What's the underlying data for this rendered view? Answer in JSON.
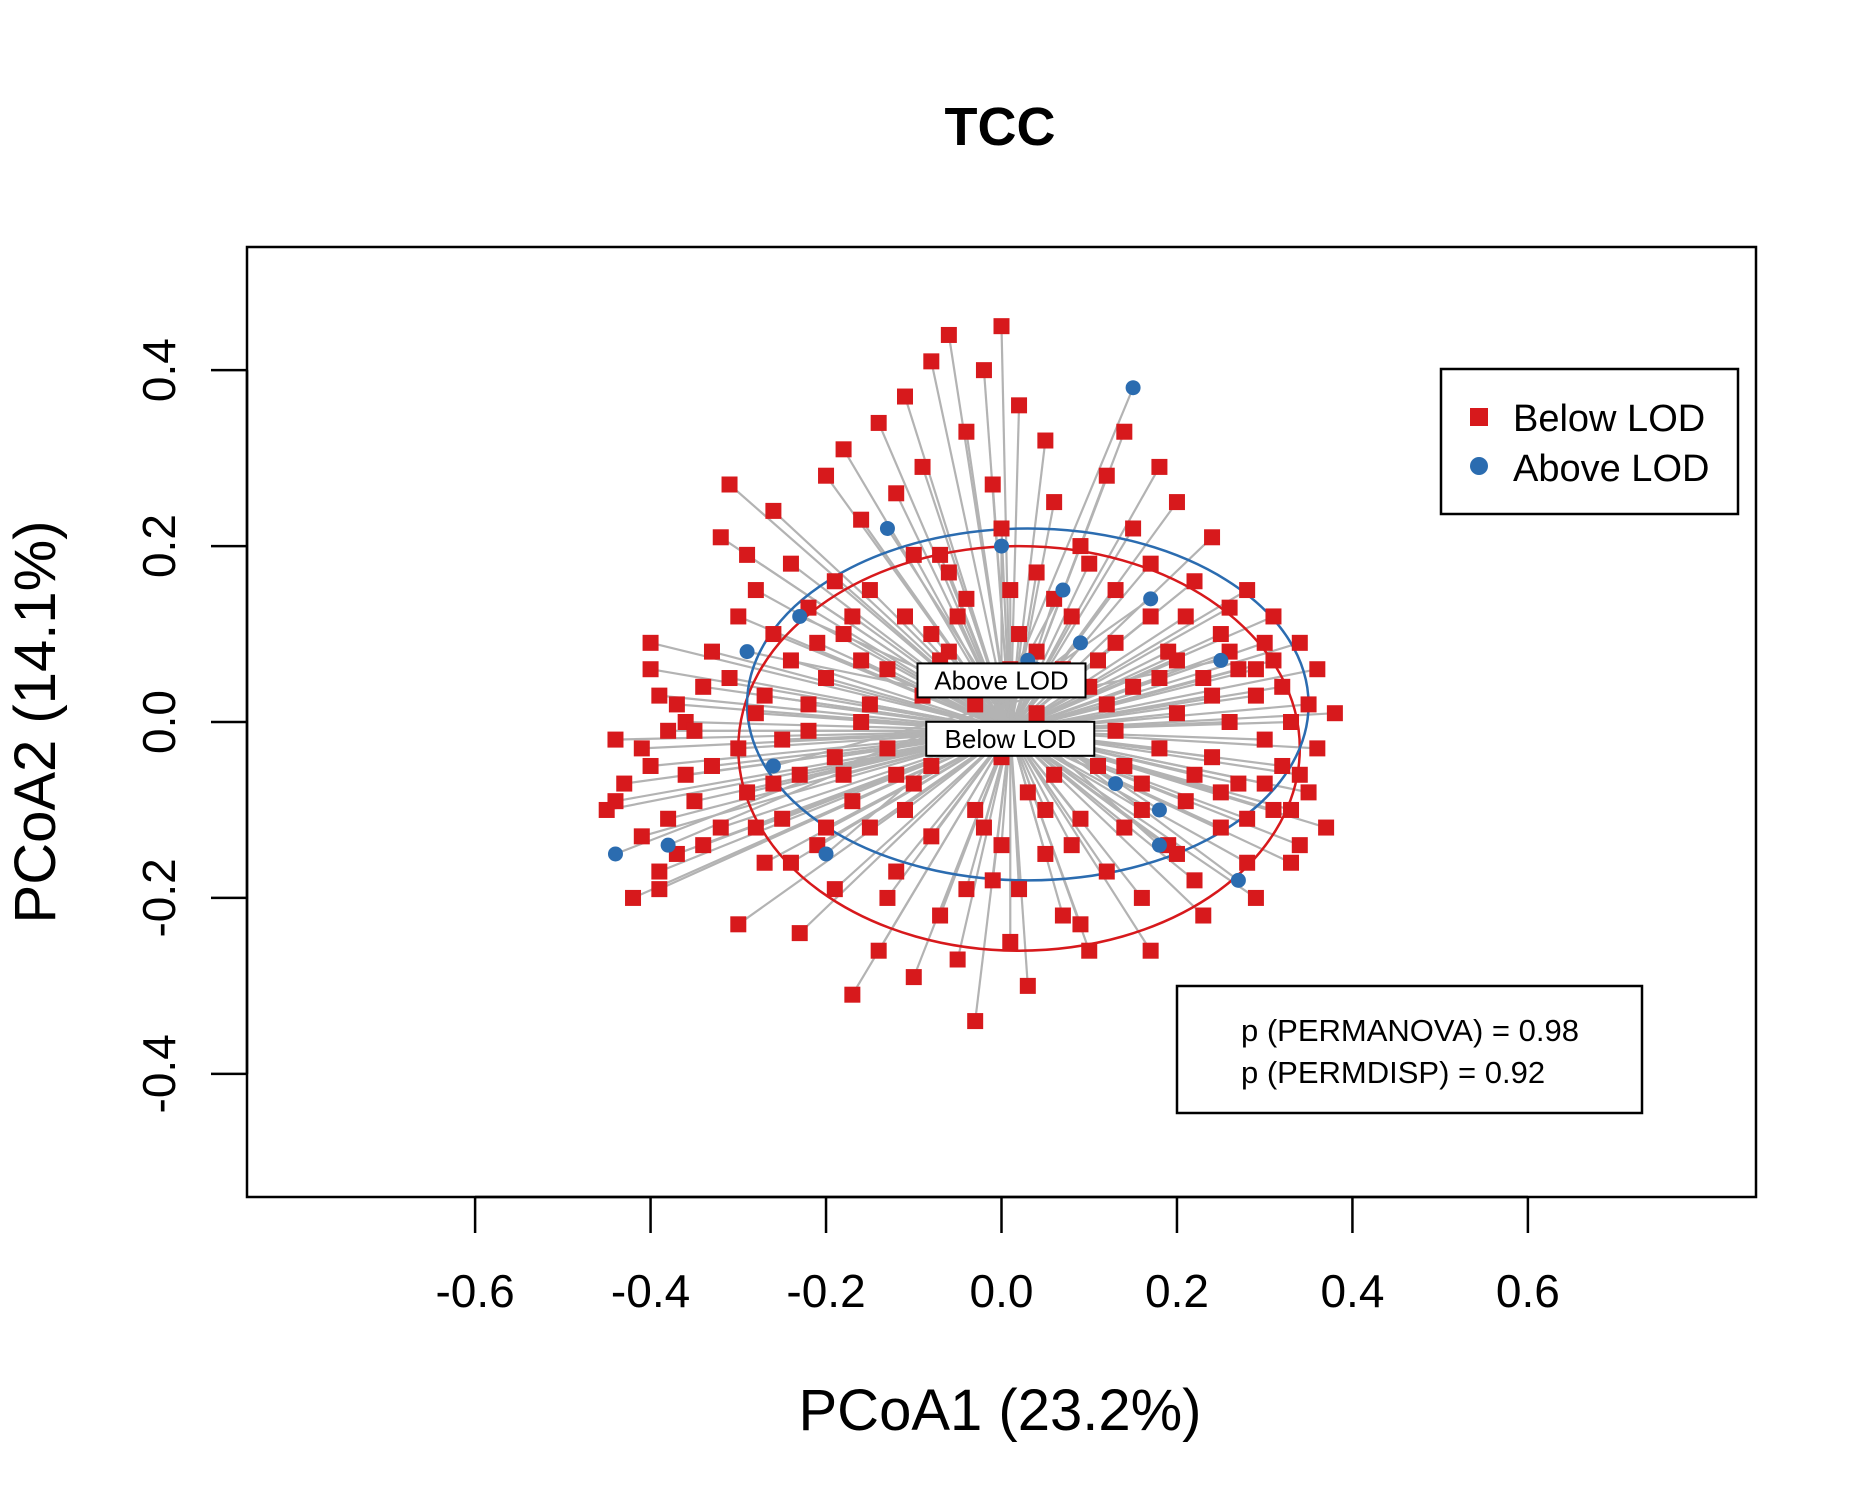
{
  "chart_data": {
    "type": "scatter",
    "title": "TCC",
    "xlabel": "PCoA1 (23.2%)",
    "ylabel": "PCoA2 (14.1%)",
    "xlim": [
      -0.86,
      0.86
    ],
    "ylim": [
      -0.54,
      0.54
    ],
    "x_ticks": [
      "-0.6",
      "-0.4",
      "-0.2",
      "0.0",
      "0.2",
      "0.4",
      "0.6"
    ],
    "y_ticks": [
      "-0.4",
      "-0.2",
      "0.0",
      "0.2",
      "0.4"
    ],
    "grid": false,
    "legend": {
      "position": "top-right",
      "entries": [
        {
          "label": "Below LOD",
          "marker": "square",
          "color": "#d7191c"
        },
        {
          "label": "Above LOD",
          "marker": "circle",
          "color": "#2b6cb0"
        }
      ]
    },
    "annotations": {
      "permanova": "p (PERMANOVA) = 0.98",
      "permdisp": "p (PERMDISP) = 0.92",
      "centroid_above_label": "Above LOD",
      "centroid_below_label": "Below LOD"
    },
    "spider_color": "#b3b3b3",
    "series": [
      {
        "name": "Below LOD",
        "marker": "square",
        "color": "#d7191c",
        "centroid": [
          0.01,
          -0.01
        ],
        "ellipse": {
          "center": [
            0.02,
            -0.03
          ],
          "rx": 0.32,
          "ry": 0.23
        },
        "points": [
          [
            -0.45,
            -0.1
          ],
          [
            -0.44,
            -0.02
          ],
          [
            -0.43,
            -0.07
          ],
          [
            -0.42,
            -0.2
          ],
          [
            -0.41,
            -0.03
          ],
          [
            -0.41,
            -0.13
          ],
          [
            -0.4,
            0.09
          ],
          [
            -0.4,
            0.06
          ],
          [
            -0.4,
            -0.05
          ],
          [
            -0.39,
            -0.19
          ],
          [
            -0.39,
            -0.17
          ],
          [
            -0.38,
            -0.01
          ],
          [
            -0.38,
            -0.11
          ],
          [
            -0.37,
            0.02
          ],
          [
            -0.37,
            -0.15
          ],
          [
            -0.36,
            0.0
          ],
          [
            -0.35,
            -0.09
          ],
          [
            -0.34,
            0.04
          ],
          [
            -0.33,
            -0.05
          ],
          [
            -0.32,
            0.21
          ],
          [
            -0.32,
            -0.12
          ],
          [
            -0.31,
            0.27
          ],
          [
            -0.31,
            0.05
          ],
          [
            -0.3,
            -0.03
          ],
          [
            -0.3,
            -0.23
          ],
          [
            -0.29,
            0.19
          ],
          [
            -0.29,
            -0.08
          ],
          [
            -0.28,
            0.15
          ],
          [
            -0.28,
            0.01
          ],
          [
            -0.27,
            -0.16
          ],
          [
            -0.26,
            0.24
          ],
          [
            -0.26,
            0.1
          ],
          [
            -0.25,
            -0.02
          ],
          [
            -0.25,
            -0.11
          ],
          [
            -0.24,
            0.18
          ],
          [
            -0.24,
            0.07
          ],
          [
            -0.23,
            -0.06
          ],
          [
            -0.23,
            -0.24
          ],
          [
            -0.22,
            0.13
          ],
          [
            -0.22,
            0.02
          ],
          [
            -0.21,
            -0.14
          ],
          [
            -0.2,
            0.28
          ],
          [
            -0.2,
            0.05
          ],
          [
            -0.19,
            -0.04
          ],
          [
            -0.19,
            -0.19
          ],
          [
            -0.18,
            0.31
          ],
          [
            -0.18,
            0.1
          ],
          [
            -0.17,
            -0.09
          ],
          [
            -0.17,
            -0.31
          ],
          [
            -0.16,
            0.23
          ],
          [
            -0.16,
            0.0
          ],
          [
            -0.15,
            0.15
          ],
          [
            -0.15,
            -0.12
          ],
          [
            -0.14,
            -0.26
          ],
          [
            -0.14,
            0.34
          ],
          [
            -0.13,
            0.06
          ],
          [
            -0.13,
            -0.03
          ],
          [
            -0.12,
            0.26
          ],
          [
            -0.12,
            -0.17
          ],
          [
            -0.11,
            0.37
          ],
          [
            -0.11,
            0.12
          ],
          [
            -0.1,
            -0.07
          ],
          [
            -0.1,
            -0.29
          ],
          [
            -0.09,
            0.29
          ],
          [
            -0.09,
            0.03
          ],
          [
            -0.08,
            0.41
          ],
          [
            -0.08,
            -0.13
          ],
          [
            -0.07,
            0.19
          ],
          [
            -0.07,
            -0.22
          ],
          [
            -0.06,
            0.44
          ],
          [
            -0.06,
            0.08
          ],
          [
            -0.05,
            -0.01
          ],
          [
            -0.05,
            -0.27
          ],
          [
            -0.04,
            0.33
          ],
          [
            -0.04,
            0.14
          ],
          [
            -0.03,
            -0.1
          ],
          [
            -0.03,
            -0.34
          ],
          [
            -0.02,
            0.4
          ],
          [
            -0.02,
            0.05
          ],
          [
            -0.01,
            -0.18
          ],
          [
            0.0,
            0.45
          ],
          [
            0.0,
            0.22
          ],
          [
            0.0,
            -0.04
          ],
          [
            0.01,
            -0.25
          ],
          [
            0.02,
            0.36
          ],
          [
            0.02,
            0.1
          ],
          [
            0.03,
            -0.08
          ],
          [
            0.03,
            -0.3
          ],
          [
            0.04,
            0.17
          ],
          [
            0.04,
            0.01
          ],
          [
            0.05,
            -0.15
          ],
          [
            0.06,
            0.25
          ],
          [
            0.06,
            -0.06
          ],
          [
            0.07,
            -0.22
          ],
          [
            0.08,
            0.12
          ],
          [
            0.08,
            -0.02
          ],
          [
            0.09,
            0.2
          ],
          [
            0.09,
            -0.11
          ],
          [
            0.1,
            -0.26
          ],
          [
            0.11,
            0.07
          ],
          [
            0.11,
            -0.05
          ],
          [
            0.12,
            0.28
          ],
          [
            0.12,
            -0.17
          ],
          [
            0.13,
            0.15
          ],
          [
            0.13,
            -0.01
          ],
          [
            0.14,
            -0.12
          ],
          [
            0.15,
            0.22
          ],
          [
            0.15,
            0.04
          ],
          [
            0.16,
            -0.07
          ],
          [
            0.16,
            -0.2
          ],
          [
            0.17,
            0.12
          ],
          [
            0.18,
            0.29
          ],
          [
            0.18,
            -0.03
          ],
          [
            0.19,
            0.08
          ],
          [
            0.19,
            -0.14
          ],
          [
            0.2,
            0.25
          ],
          [
            0.2,
            0.01
          ],
          [
            0.21,
            -0.09
          ],
          [
            0.22,
            0.16
          ],
          [
            0.22,
            -0.18
          ],
          [
            0.23,
            0.05
          ],
          [
            0.24,
            -0.04
          ],
          [
            0.24,
            0.21
          ],
          [
            0.25,
            0.1
          ],
          [
            0.25,
            -0.12
          ],
          [
            0.26,
            0.0
          ],
          [
            0.27,
            -0.07
          ],
          [
            0.27,
            0.06
          ],
          [
            0.28,
            0.15
          ],
          [
            0.28,
            -0.16
          ],
          [
            0.29,
            0.03
          ],
          [
            0.3,
            -0.02
          ],
          [
            0.3,
            0.09
          ],
          [
            0.31,
            -0.1
          ],
          [
            0.32,
            0.04
          ],
          [
            0.32,
            -0.05
          ],
          [
            0.33,
            0.0
          ],
          [
            0.34,
            -0.14
          ],
          [
            0.35,
            0.02
          ],
          [
            0.35,
            -0.08
          ],
          [
            0.36,
            -0.03
          ],
          [
            0.36,
            0.06
          ],
          [
            0.37,
            -0.12
          ],
          [
            0.38,
            0.01
          ],
          [
            -0.44,
            -0.09
          ],
          [
            -0.36,
            -0.06
          ],
          [
            -0.34,
            -0.14
          ],
          [
            -0.27,
            0.03
          ],
          [
            -0.21,
            0.09
          ],
          [
            -0.19,
            0.16
          ],
          [
            -0.15,
            0.02
          ],
          [
            -0.1,
            0.19
          ],
          [
            -0.08,
            -0.05
          ],
          [
            -0.06,
            0.17
          ],
          [
            -0.04,
            -0.19
          ],
          [
            -0.01,
            0.27
          ],
          [
            0.01,
            0.15
          ],
          [
            0.05,
            0.32
          ],
          [
            0.07,
            0.06
          ],
          [
            0.1,
            0.18
          ],
          [
            0.14,
            0.33
          ],
          [
            0.17,
            -0.26
          ],
          [
            0.21,
            0.12
          ],
          [
            0.23,
            -0.22
          ],
          [
            0.26,
            0.13
          ],
          [
            0.29,
            -0.2
          ],
          [
            0.31,
            0.07
          ],
          [
            0.33,
            -0.16
          ],
          [
            -0.3,
            0.12
          ],
          [
            -0.24,
            -0.16
          ],
          [
            -0.18,
            -0.06
          ],
          [
            -0.13,
            -0.2
          ],
          [
            -0.07,
            0.07
          ],
          [
            -0.02,
            -0.12
          ],
          [
            0.02,
            -0.19
          ],
          [
            0.06,
            0.14
          ],
          [
            0.09,
            -0.23
          ],
          [
            0.13,
            0.09
          ],
          [
            0.17,
            0.18
          ],
          [
            0.2,
            -0.15
          ],
          [
            0.24,
            0.03
          ],
          [
            0.28,
            -0.11
          ],
          [
            0.31,
            0.12
          ],
          [
            0.34,
            -0.06
          ],
          [
            -0.39,
            0.03
          ],
          [
            -0.33,
            0.08
          ],
          [
            -0.26,
            -0.07
          ],
          [
            -0.2,
            -0.12
          ],
          [
            -0.16,
            0.07
          ],
          [
            -0.11,
            -0.1
          ],
          [
            -0.05,
            0.12
          ],
          [
            0.0,
            -0.14
          ],
          [
            0.04,
            0.08
          ],
          [
            0.08,
            -0.14
          ],
          [
            0.12,
            0.02
          ],
          [
            0.16,
            -0.1
          ],
          [
            0.2,
            0.07
          ],
          [
            0.25,
            -0.08
          ],
          [
            0.29,
            0.06
          ],
          [
            0.33,
            -0.1
          ],
          [
            -0.35,
            -0.01
          ],
          [
            -0.28,
            -0.12
          ],
          [
            -0.22,
            -0.01
          ],
          [
            -0.17,
            0.12
          ],
          [
            -0.12,
            -0.06
          ],
          [
            -0.08,
            0.1
          ],
          [
            -0.03,
            0.02
          ],
          [
            0.01,
            0.06
          ],
          [
            0.05,
            -0.1
          ],
          [
            0.1,
            0.04
          ],
          [
            0.14,
            -0.05
          ],
          [
            0.18,
            0.05
          ],
          [
            0.22,
            -0.06
          ],
          [
            0.26,
            0.08
          ],
          [
            0.3,
            -0.07
          ],
          [
            0.34,
            0.09
          ]
        ]
      },
      {
        "name": "Above LOD",
        "marker": "circle",
        "color": "#2b6cb0",
        "centroid": [
          0.0,
          0.02
        ],
        "ellipse": {
          "center": [
            0.03,
            0.02
          ],
          "rx": 0.32,
          "ry": 0.2
        },
        "points": [
          [
            -0.44,
            -0.15
          ],
          [
            -0.38,
            -0.14
          ],
          [
            -0.29,
            0.08
          ],
          [
            -0.26,
            -0.05
          ],
          [
            -0.23,
            0.12
          ],
          [
            -0.2,
            -0.15
          ],
          [
            -0.13,
            0.22
          ],
          [
            0.0,
            0.2
          ],
          [
            0.03,
            0.07
          ],
          [
            0.04,
            0.06
          ],
          [
            0.07,
            0.15
          ],
          [
            0.09,
            0.09
          ],
          [
            0.13,
            -0.07
          ],
          [
            0.15,
            0.38
          ],
          [
            0.17,
            0.14
          ],
          [
            0.18,
            -0.1
          ],
          [
            0.18,
            -0.14
          ],
          [
            0.25,
            0.07
          ],
          [
            0.27,
            -0.18
          ]
        ]
      }
    ]
  }
}
